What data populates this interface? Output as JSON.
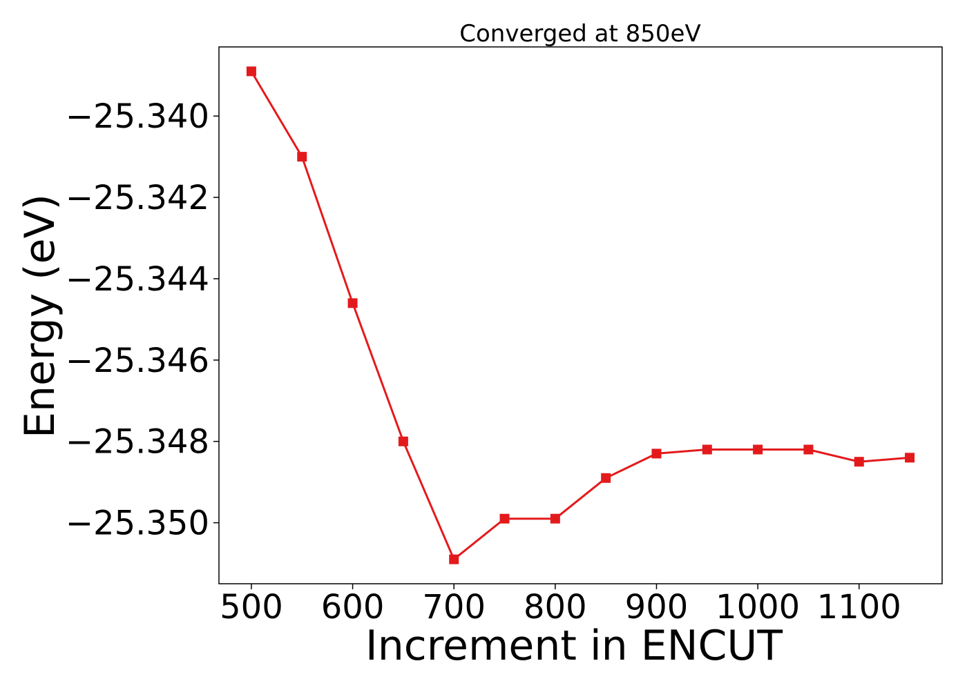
{
  "chart_data": {
    "type": "line",
    "title": "Converged at 850eV",
    "xlabel": "Increment in ENCUT",
    "ylabel": "Energy (eV)",
    "x": [
      500,
      550,
      600,
      650,
      700,
      750,
      800,
      850,
      900,
      950,
      1000,
      1050,
      1100,
      1150
    ],
    "series": [
      {
        "values": [
          -25.3389,
          -25.341,
          -25.3446,
          -25.348,
          -25.3509,
          -25.3499,
          -25.3499,
          -25.3489,
          -25.3483,
          -25.3482,
          -25.3482,
          -25.3482,
          -25.3485,
          -25.3484
        ],
        "color": "#e31a1c",
        "marker": "square"
      }
    ],
    "xlim": [
      468,
      1182
    ],
    "ylim": [
      -25.3515,
      -25.3383
    ],
    "xticks": [
      500,
      600,
      700,
      800,
      900,
      1000,
      1100
    ],
    "xtick_labels": [
      "500",
      "600",
      "700",
      "800",
      "900",
      "1000",
      "1100"
    ],
    "yticks": [
      -25.34,
      -25.342,
      -25.344,
      -25.346,
      -25.348,
      -25.35
    ],
    "ytick_labels": [
      "−25.340",
      "−25.342",
      "−25.344",
      "−25.346",
      "−25.348",
      "−25.350"
    ],
    "grid": false,
    "legend": "none"
  }
}
